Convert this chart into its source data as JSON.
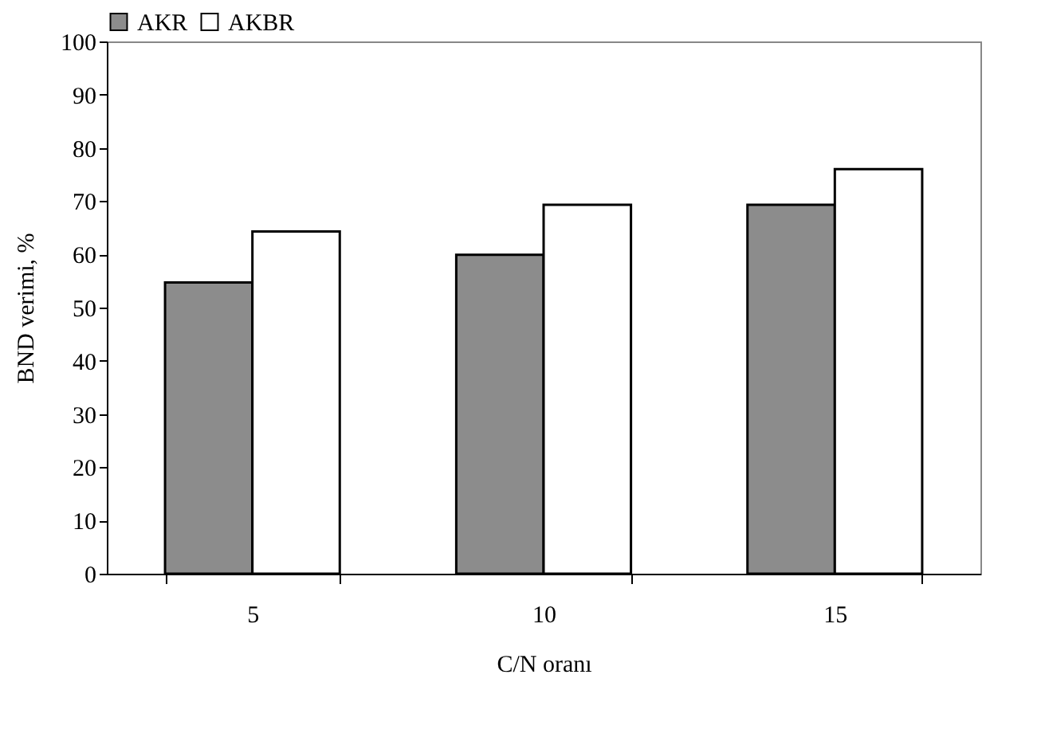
{
  "chart_data": {
    "type": "bar",
    "xlabel": "C/N oranı",
    "ylabel": "BND verimi, %",
    "categories": [
      "5",
      "10",
      "15"
    ],
    "series": [
      {
        "name": "AKR",
        "color": "#8c8c8c",
        "values": [
          54.7,
          59.9,
          69.3
        ]
      },
      {
        "name": "AKBR",
        "color": "#ffffff",
        "values": [
          64.3,
          69.3,
          76.0
        ]
      }
    ],
    "ylim": [
      0,
      100
    ],
    "yticks": [
      0,
      10,
      20,
      30,
      40,
      50,
      60,
      70,
      80,
      90,
      100
    ],
    "grid": false,
    "legend": "top"
  }
}
